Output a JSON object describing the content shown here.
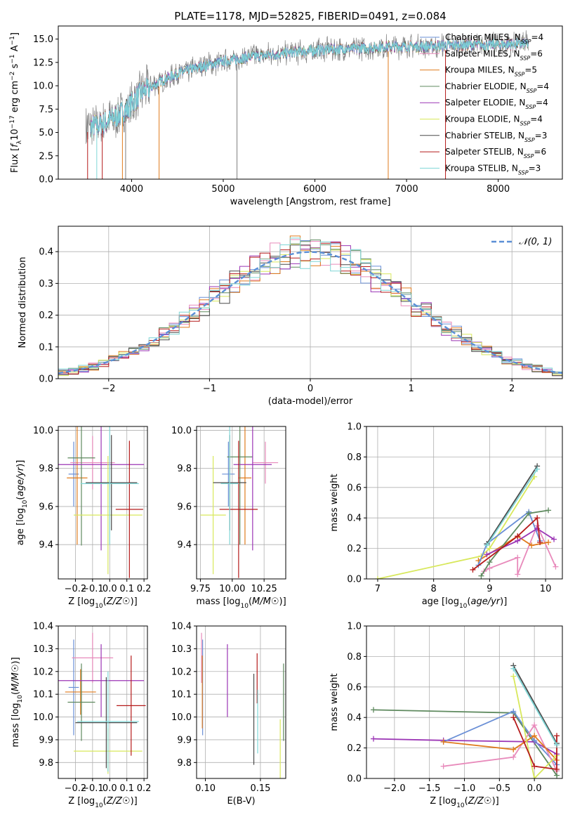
{
  "figure_title": "PLATE=1178, MJD=52825, FIBERID=0491, z=0.084",
  "colors": {
    "Chabrier MILES": "#6a8fd6",
    "Salpeter MILES": "#e88abb",
    "Kroupa MILES": "#e07b1e",
    "Chabrier ELODIE": "#5f8a5f",
    "Salpeter ELODIE": "#9b35b5",
    "Kroupa ELODIE": "#d8e85c",
    "Chabrier STELIB": "#4a4a4a",
    "Salpeter STELIB": "#b51a1a",
    "Kroupa STELIB": "#7fd6d6",
    "data": "#7f7f7f",
    "normal": "#5b8fd6",
    "grid": "#b0b0b0"
  },
  "chart_data": [
    {
      "id": "spectrum",
      "type": "line",
      "title": "PLATE=1178, MJD=52825, FIBERID=0491, z=0.084",
      "xlabel": "wavelength [Angstrom, rest frame]",
      "ylabel": "Flux [f$_\\lambda$10$^{-17}$ erg cm$^{-2}$ s$^{-1}$ A$^{-1}$]",
      "ylabel_parts": [
        "Flux [",
        "f",
        "λ",
        "10",
        "−17",
        " erg cm",
        "−2",
        " s",
        "−1",
        " A",
        "−1",
        "]"
      ],
      "xlim": [
        3200,
        8700
      ],
      "ylim": [
        0,
        16.4
      ],
      "xticks": [
        4000,
        5000,
        6000,
        7000,
        8000
      ],
      "yticks": [
        0.0,
        2.5,
        5.0,
        7.5,
        10.0,
        12.5,
        15.0
      ],
      "ytick_labels": [
        "0.0",
        "2.5",
        "5.0",
        "7.5",
        "10.0",
        "12.5",
        "15.0"
      ],
      "grid": false,
      "legend_position": "upper-right",
      "series": [
        {
          "name": "Chabrier MILES",
          "label_main": "Chabrier MILES, N",
          "label_sub": "SSP",
          "label_tail": "=4"
        },
        {
          "name": "Salpeter MILES",
          "label_main": "Salpeter MILES, N",
          "label_sub": "SSP",
          "label_tail": "=6"
        },
        {
          "name": "Kroupa MILES",
          "label_main": "Kroupa MILES, N",
          "label_sub": "SSP",
          "label_tail": "=5"
        },
        {
          "name": "Chabrier ELODIE",
          "label_main": "Chabrier ELODIE, N",
          "label_sub": "SSP",
          "label_tail": "=4"
        },
        {
          "name": "Salpeter ELODIE",
          "label_main": "Salpeter ELODIE, N",
          "label_sub": "SSP",
          "label_tail": "=4"
        },
        {
          "name": "Kroupa ELODIE",
          "label_main": "Kroupa ELODIE, N",
          "label_sub": "SSP",
          "label_tail": "=4"
        },
        {
          "name": "Chabrier STELIB",
          "label_main": "Chabrier STELIB, N",
          "label_sub": "SSP",
          "label_tail": "=3"
        },
        {
          "name": "Salpeter STELIB",
          "label_main": "Salpeter STELIB, N",
          "label_sub": "SSP",
          "label_tail": "=6"
        },
        {
          "name": "Kroupa STELIB",
          "label_main": "Kroupa STELIB, N",
          "label_sub": "SSP",
          "label_tail": "=3"
        }
      ],
      "continuum": {
        "x": [
          3500,
          3650,
          3800,
          3950,
          4100,
          4300,
          4500,
          4700,
          5000,
          5300,
          5600,
          5900,
          6200,
          6500,
          6800,
          7100,
          7400,
          7700,
          8000,
          8300
        ],
        "y": [
          5.5,
          5.8,
          6.5,
          7.5,
          9.2,
          10.4,
          11.3,
          11.9,
          12.6,
          13.1,
          13.4,
          13.7,
          13.9,
          14.0,
          14.2,
          14.2,
          14.3,
          14.4,
          14.4,
          14.5
        ]
      },
      "data_range": [
        3500,
        8330
      ],
      "model_range": [
        3550,
        8330
      ]
    },
    {
      "id": "residuals",
      "type": "histogram",
      "xlabel": "(data-model)/error",
      "ylabel": "Normed distribution",
      "xlim": [
        -2.5,
        2.5
      ],
      "ylim": [
        0,
        0.48
      ],
      "xticks": [
        -2,
        -1,
        0,
        1,
        2
      ],
      "xtick_labels": [
        "−2",
        "−1",
        "0",
        "1",
        "2"
      ],
      "yticks": [
        0.0,
        0.1,
        0.2,
        0.3,
        0.4
      ],
      "ytick_labels": [
        "0.0",
        "0.1",
        "0.2",
        "0.3",
        "0.4"
      ],
      "grid": true,
      "legend_position": "upper-right",
      "legend": "𝒩(0, 1)",
      "bin_width": 0.1,
      "x_range": [
        -2.5,
        2.5
      ]
    },
    {
      "id": "age-vs-Z",
      "type": "scatter",
      "xlabel": "Z [log₁₀(Z/Z☉)]",
      "xlabel_parts": [
        "Z [log",
        "10",
        "(",
        "Z/Z",
        "☉",
        ")]"
      ],
      "ylabel": "age  [log₁₀(age/yr)]",
      "ylabel_parts": [
        "age  [log",
        "10",
        "(",
        "age/yr",
        ")]"
      ],
      "xlim": [
        -0.3,
        0.22
      ],
      "ylim": [
        9.22,
        10.02
      ],
      "xticks": [
        -0.2,
        -0.1,
        0.0,
        0.1,
        0.2
      ],
      "xtick_labels": [
        "−0.2",
        "−0.1",
        "0.0",
        "0.1",
        "0.2"
      ],
      "yticks": [
        9.4,
        9.6,
        9.8,
        10.0
      ],
      "ytick_labels": [
        "9.4",
        "9.6",
        "9.8",
        "10.0"
      ],
      "grid": true,
      "points": [
        {
          "series": "Chabrier MILES",
          "x": -0.21,
          "xerr": 0.03,
          "y": 9.77,
          "yerr": 0.17
        },
        {
          "series": "Salpeter MILES",
          "x": -0.1,
          "xerr": 0.13,
          "y": 9.83,
          "yerr": 0.14
        },
        {
          "series": "Kroupa MILES",
          "x": -0.19,
          "xerr": 0.06,
          "y": 9.75,
          "yerr": 0.35
        },
        {
          "series": "Chabrier ELODIE",
          "x": -0.165,
          "xerr": 0.08,
          "y": 9.855,
          "yerr": 0.46
        },
        {
          "series": "Salpeter ELODIE",
          "x": -0.05,
          "xerr": 0.25,
          "y": 9.82,
          "yerr": 0.45
        },
        {
          "series": "Kroupa ELODIE",
          "x": -0.01,
          "xerr": 0.2,
          "y": 9.555,
          "yerr": 0.31
        },
        {
          "series": "Chabrier STELIB",
          "x": 0.01,
          "xerr": 0.15,
          "y": 9.725,
          "yerr": 0.25
        },
        {
          "series": "Salpeter STELIB",
          "x": 0.115,
          "xerr": 0.08,
          "y": 9.585,
          "yerr": 0.36
        },
        {
          "series": "Kroupa STELIB",
          "x": 0.0,
          "xerr": 0.17,
          "y": 9.72,
          "yerr": 0.32
        }
      ]
    },
    {
      "id": "age-vs-mass",
      "type": "scatter",
      "xlabel": "mass [log₁₀(M/M☉)]",
      "xlabel_parts": [
        "mass [log",
        "10",
        "(",
        "M/M",
        "☉",
        ")]"
      ],
      "ylabel": "",
      "xlim": [
        9.72,
        10.42
      ],
      "ylim": [
        9.22,
        10.02
      ],
      "xticks": [
        9.75,
        10.0,
        10.25
      ],
      "xtick_labels": [
        "9.75",
        "10.00",
        "10.25"
      ],
      "yticks": [
        9.4,
        9.6,
        9.8,
        10.0
      ],
      "ytick_labels": [
        "9.4",
        "9.6",
        "9.8",
        "10.0"
      ],
      "grid": true,
      "points": [
        {
          "series": "Chabrier MILES",
          "x": 9.97,
          "xerr": 0.05,
          "y": 9.77,
          "yerr": 0.17
        },
        {
          "series": "Salpeter MILES",
          "x": 10.26,
          "xerr": 0.1,
          "y": 9.83,
          "yerr": 0.11
        },
        {
          "series": "Kroupa MILES",
          "x": 10.1,
          "xerr": 0.05,
          "y": 9.75,
          "yerr": 0.35
        },
        {
          "series": "Chabrier ELODIE",
          "x": 10.06,
          "xerr": 0.1,
          "y": 9.86,
          "yerr": 0.46
        },
        {
          "series": "Salpeter ELODIE",
          "x": 10.16,
          "xerr": 0.15,
          "y": 9.82,
          "yerr": 0.45
        },
        {
          "series": "Kroupa ELODIE",
          "x": 9.85,
          "xerr": 0.1,
          "y": 9.555,
          "yerr": 0.31
        },
        {
          "series": "Chabrier STELIB",
          "x": 9.98,
          "xerr": 0.13,
          "y": 9.725,
          "yerr": 0.25
        },
        {
          "series": "Salpeter STELIB",
          "x": 10.05,
          "xerr": 0.15,
          "y": 9.585,
          "yerr": 0.36
        },
        {
          "series": "Kroupa STELIB",
          "x": 9.98,
          "xerr": 0.07,
          "y": 9.72,
          "yerr": 0.32
        }
      ]
    },
    {
      "id": "weight-vs-age",
      "type": "line",
      "xlabel": "age  [log₁₀(age/yr)]",
      "xlabel_parts": [
        "age  [log",
        "10",
        "(",
        "age/yr",
        ")]"
      ],
      "ylabel": "mass weight",
      "xlim": [
        6.8,
        10.3
      ],
      "ylim": [
        0,
        1.0
      ],
      "xticks": [
        7,
        8,
        9,
        10
      ],
      "xtick_labels": [
        "7",
        "8",
        "9",
        "10"
      ],
      "yticks": [
        0.0,
        0.2,
        0.4,
        0.6,
        0.8,
        1.0
      ],
      "ytick_labels": [
        "0.0",
        "0.2",
        "0.4",
        "0.6",
        "0.8",
        "1.0"
      ],
      "grid": true,
      "series": [
        {
          "name": "Kroupa ELODIE",
          "x": [
            7.0,
            8.85,
            9.0,
            9.8
          ],
          "y": [
            0.0,
            0.15,
            0.2,
            0.67
          ]
        },
        {
          "name": "Salpeter MILES",
          "x": [
            8.9,
            9.0,
            9.5,
            9.5,
            9.85,
            10.18
          ],
          "y": [
            0.05,
            0.07,
            0.14,
            0.03,
            0.35,
            0.08
          ]
        },
        {
          "name": "Kroupa MILES",
          "x": [
            8.8,
            9.5,
            9.75,
            10.05
          ],
          "y": [
            0.12,
            0.28,
            0.22,
            0.24
          ]
        },
        {
          "name": "Chabrier MILES",
          "x": [
            8.8,
            8.95,
            9.7,
            9.9
          ],
          "y": [
            0.09,
            0.23,
            0.44,
            0.25
          ]
        },
        {
          "name": "Chabrier ELODIE",
          "x": [
            8.85,
            9.0,
            9.7,
            10.05
          ],
          "y": [
            0.02,
            0.11,
            0.43,
            0.45
          ]
        },
        {
          "name": "Salpeter ELODIE",
          "x": [
            8.95,
            9.5,
            9.85,
            10.15
          ],
          "y": [
            0.16,
            0.25,
            0.33,
            0.26
          ]
        },
        {
          "name": "Chabrier STELIB",
          "x": [
            8.95,
            9.85
          ],
          "y": [
            0.23,
            0.74
          ]
        },
        {
          "name": "Salpeter STELIB",
          "x": [
            8.7,
            9.5,
            9.85,
            9.9
          ],
          "y": [
            0.06,
            0.28,
            0.4,
            0.24
          ]
        },
        {
          "name": "Kroupa STELIB",
          "x": [
            8.95,
            9.85
          ],
          "y": [
            0.22,
            0.72
          ]
        }
      ]
    },
    {
      "id": "mass-vs-Z",
      "type": "scatter",
      "xlabel": "Z [log₁₀(Z/Z☉)]",
      "xlabel_parts": [
        "Z [log",
        "10",
        "(",
        "Z/Z",
        "☉",
        ")]"
      ],
      "ylabel": "mass [log₁₀(M/M☉)]",
      "ylabel_parts": [
        "mass [log",
        "10",
        "(",
        "M/M",
        "☉",
        ")]"
      ],
      "xlim": [
        -0.3,
        0.22
      ],
      "ylim": [
        9.73,
        10.4
      ],
      "xticks": [
        -0.2,
        -0.1,
        0.0,
        0.1,
        0.2
      ],
      "xtick_labels": [
        "−0.2",
        "−0.1",
        "0.0",
        "0.1",
        "0.2"
      ],
      "yticks": [
        9.8,
        9.9,
        10.0,
        10.1,
        10.2,
        10.3,
        10.4
      ],
      "ytick_labels": [
        "9.8",
        "9.9",
        "10.0",
        "10.1",
        "10.2",
        "10.3",
        "10.4"
      ],
      "grid": true,
      "points": [
        {
          "series": "Chabrier MILES",
          "x": -0.21,
          "xerr": 0.03,
          "y": 10.13,
          "yerr": 0.21
        },
        {
          "series": "Salpeter MILES",
          "x": -0.1,
          "xerr": 0.12,
          "y": 10.26,
          "yerr": 0.11
        },
        {
          "series": "Kroupa MILES",
          "x": -0.17,
          "xerr": 0.09,
          "y": 10.11,
          "yerr": 0.1
        },
        {
          "series": "Chabrier ELODIE",
          "x": -0.165,
          "xerr": 0.08,
          "y": 10.065,
          "yerr": 0.17
        },
        {
          "series": "Salpeter ELODIE",
          "x": -0.05,
          "xerr": 0.25,
          "y": 10.16,
          "yerr": 0.16
        },
        {
          "series": "Kroupa ELODIE",
          "x": -0.01,
          "xerr": 0.2,
          "y": 9.85,
          "yerr": 0.1
        },
        {
          "series": "Chabrier STELIB",
          "x": -0.02,
          "xerr": 0.18,
          "y": 9.975,
          "yerr": 0.2
        },
        {
          "series": "Salpeter STELIB",
          "x": 0.125,
          "xerr": 0.085,
          "y": 10.05,
          "yerr": 0.22
        },
        {
          "series": "Kroupa STELIB",
          "x": -0.01,
          "xerr": 0.18,
          "y": 9.98,
          "yerr": 0.22
        }
      ]
    },
    {
      "id": "mass-vs-ebv",
      "type": "scatter",
      "xlabel": "E(B-V)",
      "ylabel": "",
      "xlim": [
        0.092,
        0.173
      ],
      "ylim": [
        9.73,
        10.4
      ],
      "xticks": [
        0.1,
        0.15
      ],
      "xtick_labels": [
        "0.10",
        "0.15"
      ],
      "yticks": [
        9.8,
        9.9,
        10.0,
        10.1,
        10.2,
        10.3,
        10.4
      ],
      "ytick_labels": [
        "9.8",
        "9.9",
        "10.0",
        "10.1",
        "10.2",
        "10.3",
        "10.4"
      ],
      "grid": true,
      "points": [
        {
          "series": "Chabrier MILES",
          "x": 0.0975,
          "y": 10.13,
          "yerr": 0.21
        },
        {
          "series": "Salpeter MILES",
          "x": 0.0965,
          "y": 10.26,
          "yerr": 0.11
        },
        {
          "series": "Kroupa MILES",
          "x": 0.0972,
          "y": 10.11,
          "yerr": 0.16
        },
        {
          "series": "Chabrier ELODIE",
          "x": 0.171,
          "y": 10.065,
          "yerr": 0.17
        },
        {
          "series": "Salpeter ELODIE",
          "x": 0.12,
          "y": 10.16,
          "yerr": 0.16
        },
        {
          "series": "Kroupa ELODIE",
          "x": 0.168,
          "y": 9.85,
          "yerr": 0.14
        },
        {
          "series": "Chabrier STELIB",
          "x": 0.144,
          "y": 9.99,
          "yerr": 0.2
        },
        {
          "series": "Salpeter STELIB",
          "x": 0.147,
          "y": 10.17,
          "yerr": 0.11
        },
        {
          "series": "Kroupa STELIB",
          "x": 0.1475,
          "y": 9.98,
          "yerr": 0.14
        }
      ]
    },
    {
      "id": "weight-vs-Z",
      "type": "line",
      "xlabel": "Z [log₁₀(Z/Z☉)]",
      "xlabel_parts": [
        "Z [log",
        "10",
        "(",
        "Z/Z",
        "☉",
        ")]"
      ],
      "ylabel": "mass weight",
      "xlim": [
        -2.4,
        0.4
      ],
      "ylim": [
        0,
        1.0
      ],
      "xticks": [
        -2.0,
        -1.5,
        -1.0,
        -0.5,
        0.0
      ],
      "xtick_labels": [
        "−2.0",
        "−1.5",
        "−1.0",
        "−0.5",
        "0.0"
      ],
      "yticks": [
        0.0,
        0.2,
        0.4,
        0.6,
        0.8,
        1.0
      ],
      "ytick_labels": [
        "0.0",
        "0.2",
        "0.4",
        "0.6",
        "0.8",
        "1.0"
      ],
      "grid": true,
      "series": [
        {
          "name": "Chabrier ELODIE",
          "x": [
            -2.3,
            -0.3,
            0.32,
            0.32
          ],
          "y": [
            0.45,
            0.43,
            0.02,
            0.05
          ]
        },
        {
          "name": "Salpeter ELODIE",
          "x": [
            -2.3,
            -1.3,
            0.0,
            0.32
          ],
          "y": [
            0.26,
            0.25,
            0.24,
            0.16
          ]
        },
        {
          "name": "Chabrier MILES",
          "x": [
            -1.3,
            -0.3,
            0.0,
            0.32
          ],
          "y": [
            0.24,
            0.44,
            0.25,
            0.09
          ]
        },
        {
          "name": "Salpeter MILES",
          "x": [
            -1.3,
            -0.3,
            0.0,
            0.32
          ],
          "y": [
            0.08,
            0.14,
            0.35,
            0.05
          ]
        },
        {
          "name": "Kroupa MILES",
          "x": [
            -1.3,
            -0.3,
            0.0,
            0.32
          ],
          "y": [
            0.24,
            0.19,
            0.28,
            0.12
          ]
        },
        {
          "name": "Kroupa ELODIE",
          "x": [
            -0.3,
            0.0,
            0.32
          ],
          "y": [
            0.67,
            0.0,
            0.15
          ]
        },
        {
          "name": "Chabrier STELIB",
          "x": [
            -0.3,
            0.32
          ],
          "y": [
            0.74,
            0.23
          ]
        },
        {
          "name": "Salpeter STELIB",
          "x": [
            -0.3,
            0.0,
            0.32,
            0.32
          ],
          "y": [
            0.4,
            0.08,
            0.06,
            0.28
          ]
        },
        {
          "name": "Kroupa STELIB",
          "x": [
            -0.3,
            0.32
          ],
          "y": [
            0.72,
            0.22
          ]
        }
      ]
    }
  ]
}
